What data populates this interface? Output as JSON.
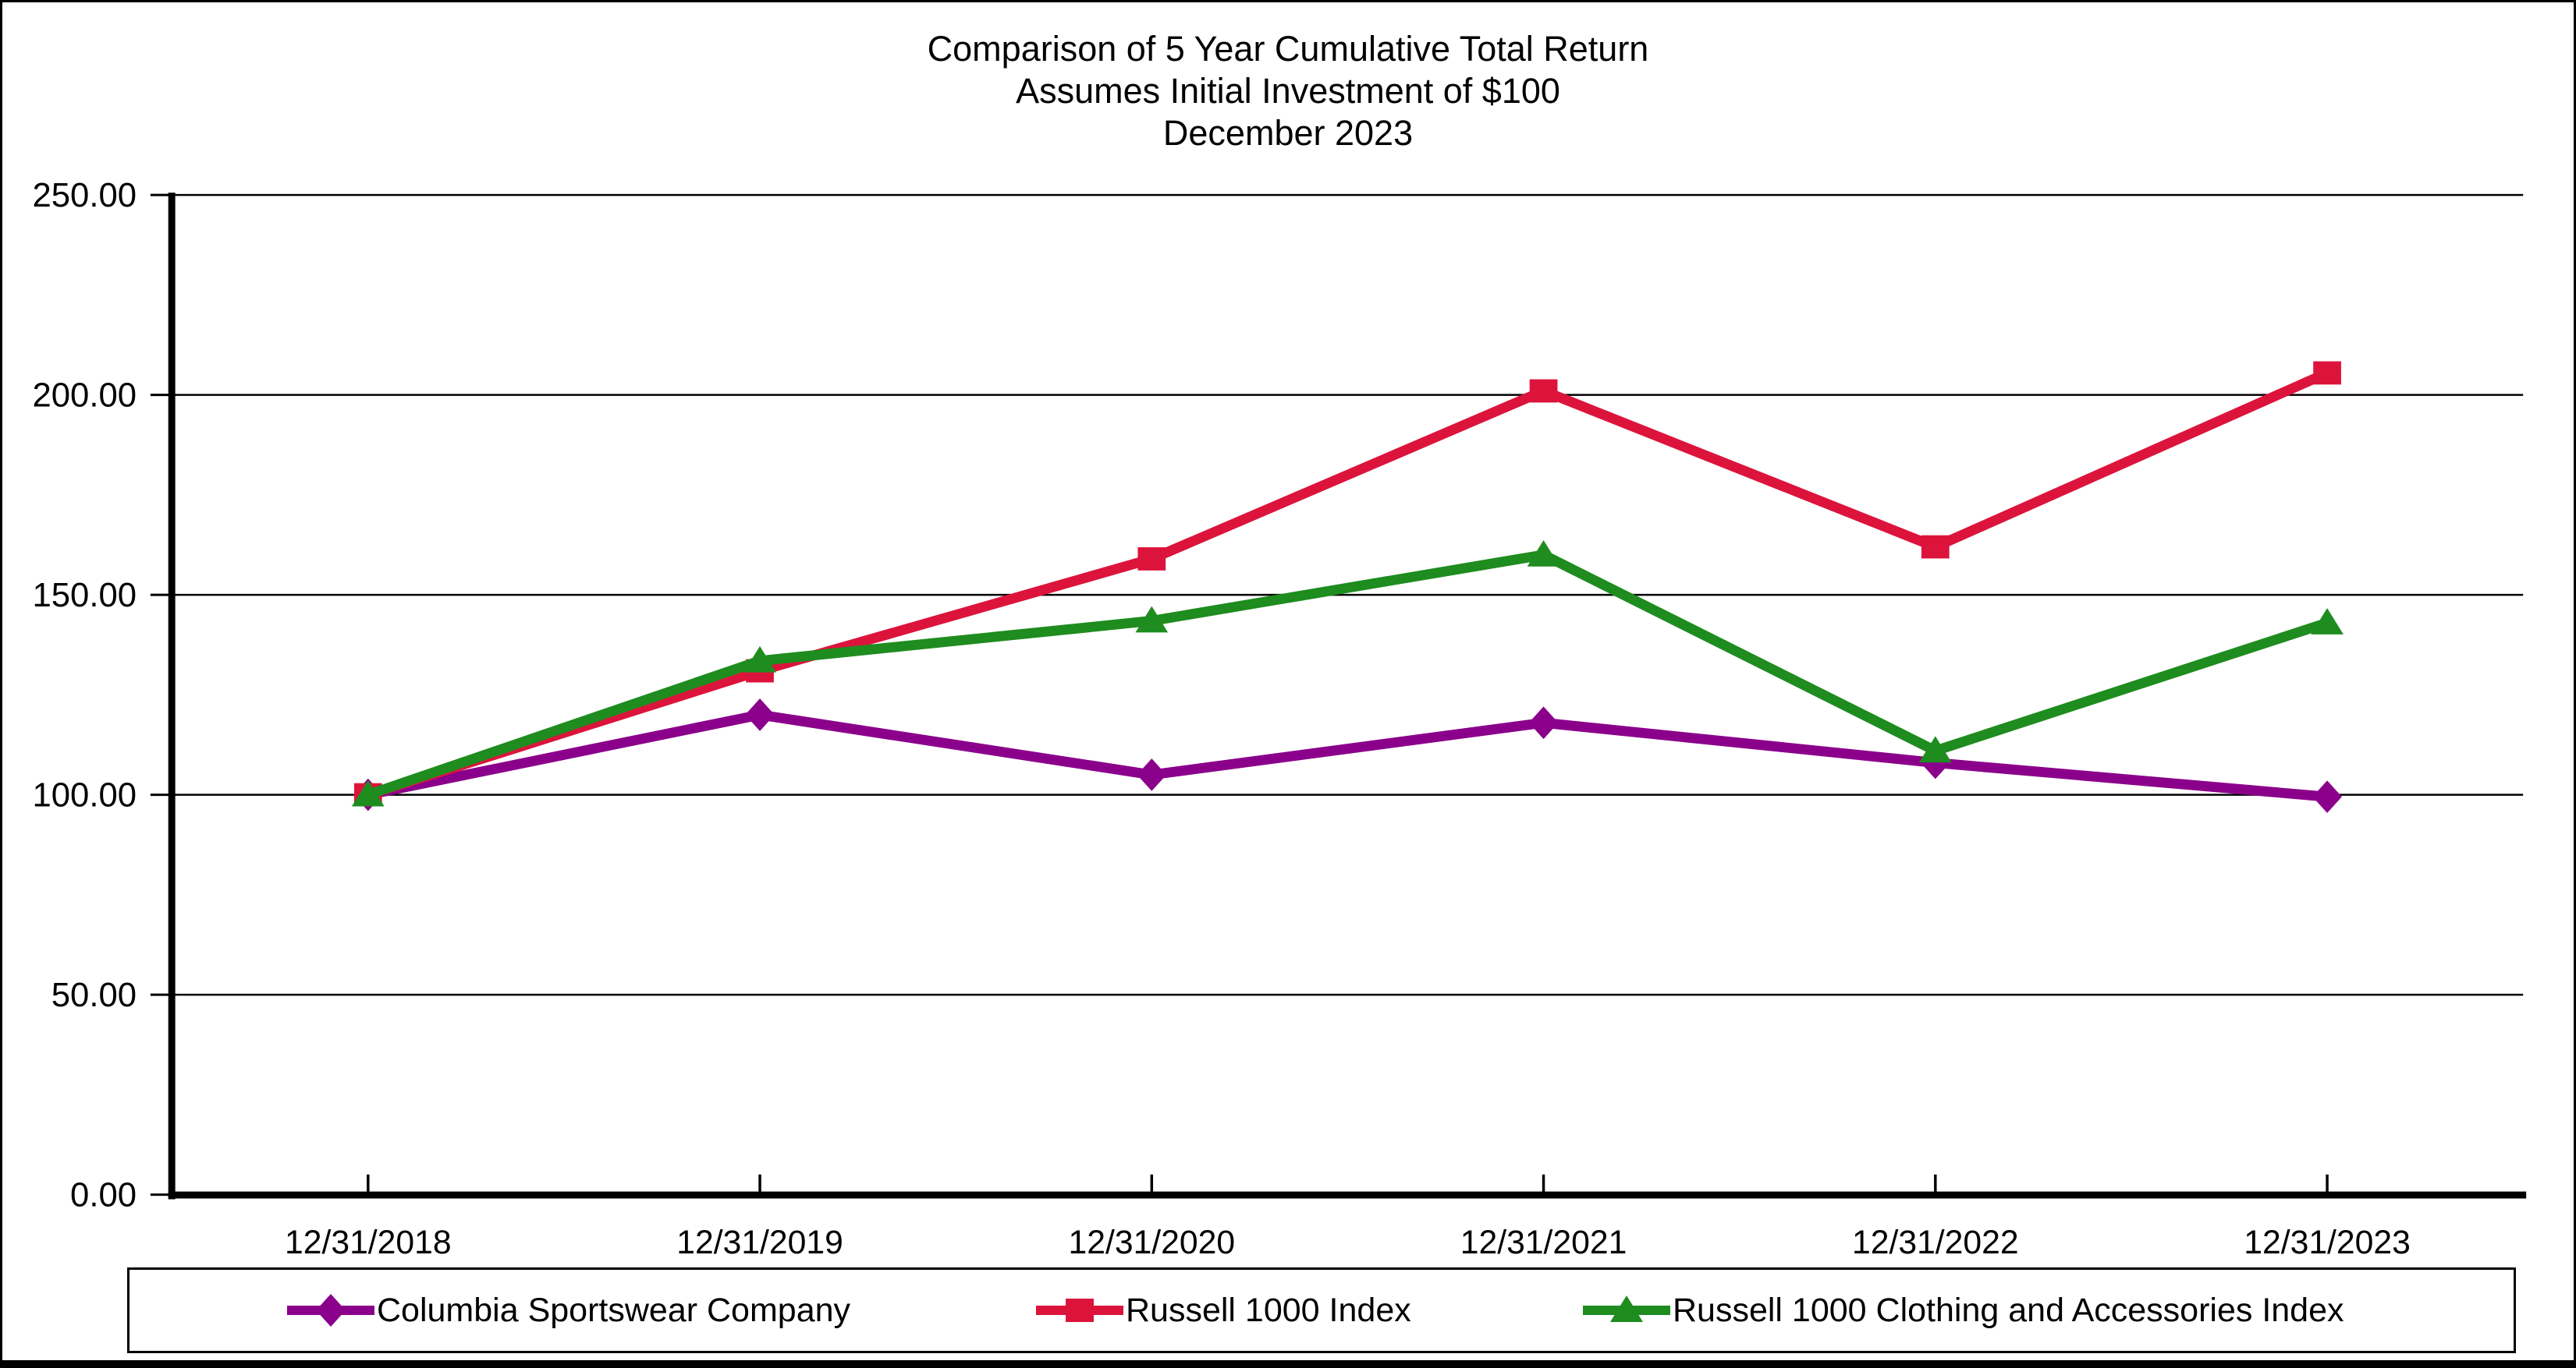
{
  "title": {
    "line1": "Comparison of 5 Year Cumulative Total Return",
    "line2": "Assumes Initial Investment of $100",
    "line3": "December 2023"
  },
  "chart_data": {
    "type": "line",
    "title": "Comparison of 5 Year Cumulative Total Return — Assumes Initial Investment of $100 — December 2023",
    "categories": [
      "12/31/2018",
      "12/31/2019",
      "12/31/2020",
      "12/31/2021",
      "12/31/2022",
      "12/31/2023"
    ],
    "series": [
      {
        "name": "Columbia Sportswear Company",
        "marker": "diamond",
        "color": "#8B008B",
        "values": [
          100.0,
          120.0,
          105.0,
          118.0,
          108.0,
          99.5
        ]
      },
      {
        "name": "Russell 1000 Index",
        "marker": "square",
        "color": "#DC143C",
        "values": [
          100.0,
          131.0,
          159.0,
          201.0,
          162.0,
          205.5
        ]
      },
      {
        "name": "Russell 1000 Clothing and Accessories Index",
        "marker": "triangle",
        "color": "#1E8C1E",
        "values": [
          100.0,
          133.5,
          143.5,
          160.0,
          111.0,
          143.0
        ]
      }
    ],
    "xlabel": "",
    "ylabel": "",
    "ylim": [
      0,
      250
    ],
    "ytick_step": 50,
    "ytick_labels": [
      "0.00",
      "50.00",
      "100.00",
      "150.00",
      "200.00",
      "250.00"
    ],
    "grid": true,
    "legend_position": "bottom",
    "axis_color": "#000000"
  }
}
